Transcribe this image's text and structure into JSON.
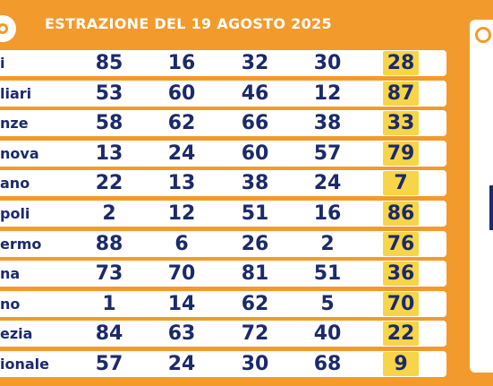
{
  "header": {
    "title": "ESTRAZIONE DEL 19 AGOSTO 2025"
  },
  "table": {
    "rows": [
      [
        "i",
        85,
        16,
        32,
        30,
        28
      ],
      [
        "liari",
        53,
        60,
        46,
        12,
        87
      ],
      [
        "nze",
        58,
        62,
        66,
        38,
        33
      ],
      [
        "nova",
        13,
        24,
        60,
        57,
        79
      ],
      [
        "ano",
        22,
        13,
        38,
        24,
        7
      ],
      [
        "poli",
        2,
        12,
        51,
        16,
        86
      ],
      [
        "ermo",
        88,
        6,
        26,
        2,
        76
      ],
      [
        "na",
        73,
        70,
        81,
        51,
        36
      ],
      [
        "no",
        1,
        14,
        62,
        5,
        70
      ],
      [
        "ezia",
        84,
        63,
        72,
        40,
        22
      ],
      [
        "ionale",
        57,
        24,
        30,
        68,
        9
      ]
    ]
  }
}
